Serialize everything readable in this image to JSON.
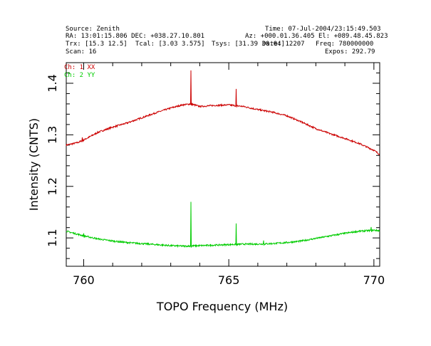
{
  "header": {
    "source": "Source: Zenith",
    "time": "Time: 07-Jul-2004/23:15:49.503",
    "ra_dec": "RA: 13:01:15.806 DEC: +038.27.10.801",
    "az_el": "Az: +000.01.36.405 El: +089.48.45.823",
    "trx": "Trx: [15.3 12.5]",
    "tcal": "Tcal: [3.03 3.575]",
    "tsys": "Tsys: [31.39 30.04]",
    "date": "Date: 12207",
    "freq": "Freq: 780000000",
    "scan": "Scan: 16",
    "expos": "Expos: 292.79"
  },
  "chart_data": {
    "type": "line",
    "xlabel": "TOPO Frequency (MHz)",
    "ylabel": "Intensity (CNTS)",
    "xlim": [
      759.4,
      770.2
    ],
    "ylim": [
      1.045,
      1.44
    ],
    "xticks": [
      760,
      765,
      770
    ],
    "yticks": [
      1.1,
      1.2,
      1.3,
      1.4
    ],
    "xtick_labels": [
      "760",
      "765",
      "770"
    ],
    "ytick_labels": [
      "1.1",
      "1.2",
      "1.3",
      "1.4"
    ],
    "grid": false,
    "legend_position": "top-left",
    "series": [
      {
        "name": "Ch: 1 XX",
        "color": "#cc0000",
        "x": [
          759.4,
          759.8,
          760.0,
          760.5,
          761.0,
          761.5,
          762.0,
          762.5,
          763.0,
          763.4,
          763.7,
          764.0,
          764.5,
          765.0,
          765.5,
          766.0,
          766.5,
          767.0,
          767.5,
          768.0,
          768.5,
          769.0,
          769.5,
          770.0,
          770.2
        ],
        "y": [
          1.28,
          1.285,
          1.29,
          1.305,
          1.315,
          1.323,
          1.333,
          1.343,
          1.352,
          1.358,
          1.36,
          1.355,
          1.357,
          1.358,
          1.355,
          1.349,
          1.344,
          1.337,
          1.325,
          1.312,
          1.302,
          1.293,
          1.283,
          1.27,
          1.262
        ],
        "spikes": [
          {
            "x": 759.95,
            "y": 1.295
          },
          {
            "x": 763.7,
            "y": 1.425
          },
          {
            "x": 765.25,
            "y": 1.389
          }
        ]
      },
      {
        "name": "Ch: 2 YY",
        "color": "#00cc00",
        "x": [
          759.4,
          759.8,
          760.0,
          760.5,
          761.0,
          761.5,
          762.0,
          762.5,
          763.0,
          763.5,
          764.0,
          764.5,
          765.0,
          765.5,
          766.0,
          766.5,
          767.0,
          767.5,
          768.0,
          768.5,
          769.0,
          769.5,
          770.0,
          770.2
        ],
        "y": [
          1.113,
          1.107,
          1.104,
          1.098,
          1.094,
          1.091,
          1.089,
          1.087,
          1.085,
          1.084,
          1.085,
          1.086,
          1.087,
          1.088,
          1.088,
          1.089,
          1.091,
          1.094,
          1.099,
          1.104,
          1.109,
          1.113,
          1.115,
          1.114
        ],
        "spikes": [
          {
            "x": 760.0,
            "y": 1.109
          },
          {
            "x": 763.7,
            "y": 1.17
          },
          {
            "x": 765.25,
            "y": 1.128
          },
          {
            "x": 766.2,
            "y": 1.095
          },
          {
            "x": 769.9,
            "y": 1.121
          }
        ]
      }
    ]
  }
}
